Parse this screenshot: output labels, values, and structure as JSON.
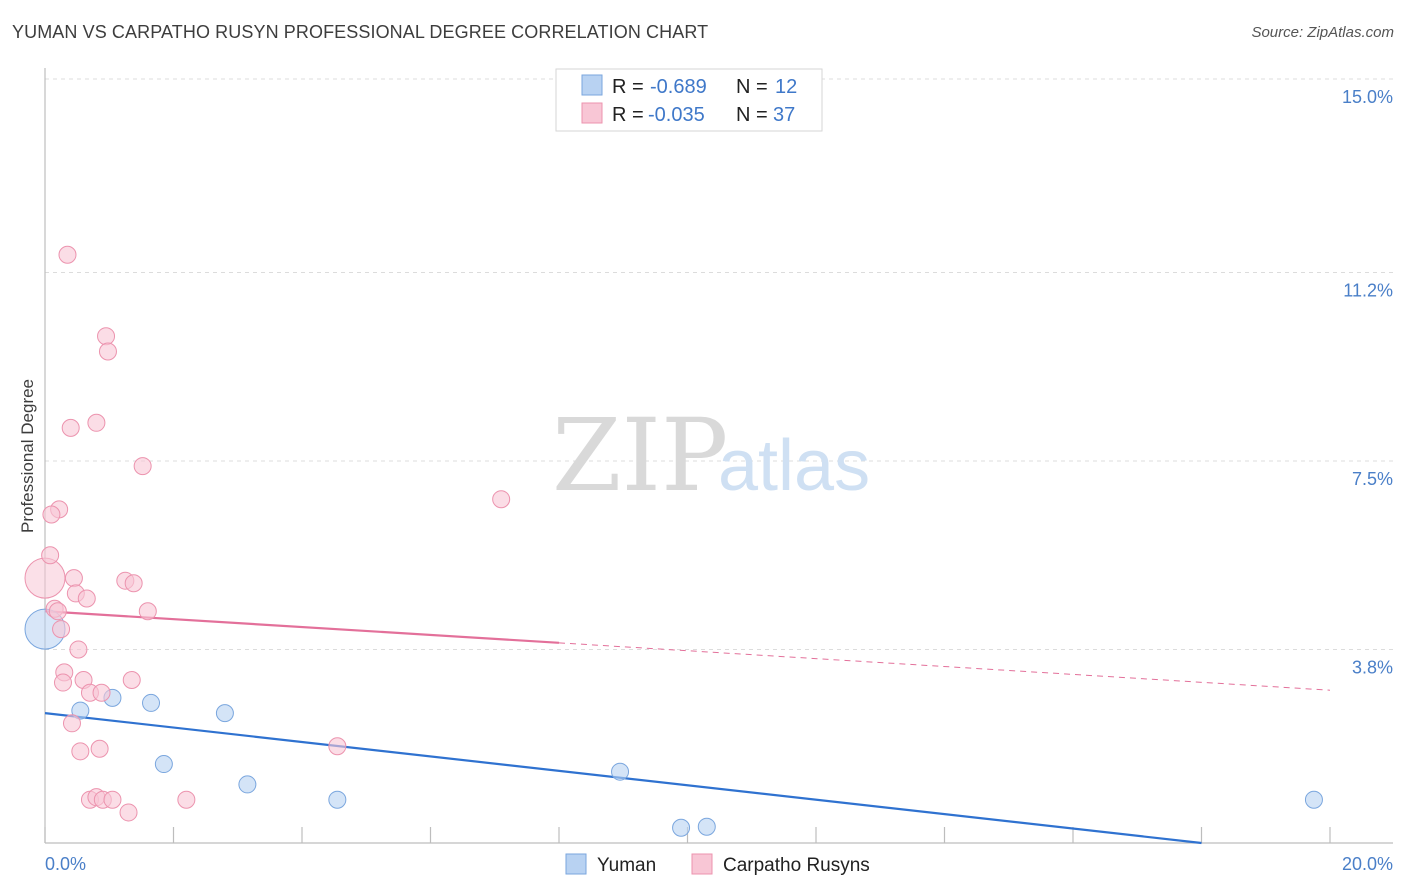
{
  "title": "YUMAN VS CARPATHO RUSYN PROFESSIONAL DEGREE CORRELATION CHART",
  "source": "Source: ZipAtlas.com",
  "watermark": {
    "zip": "ZIP",
    "atlas": "atlas"
  },
  "colors": {
    "yuman_fill": "#b8d2f2",
    "yuman_stroke": "#7aa6de",
    "yuman_line": "#2f72d0",
    "rusyn_fill": "#f8c6d5",
    "rusyn_stroke": "#ec93ae",
    "rusyn_line": "#e3709a"
  },
  "legend": {
    "r_label": "R =",
    "n_label": "N =",
    "rows": [
      {
        "series": "yuman",
        "r": "-0.689",
        "n": "12"
      },
      {
        "series": "rusyn",
        "r": "-0.035",
        "n": "37"
      }
    ]
  },
  "bottom_legend": [
    {
      "series": "yuman",
      "label": "Yuman"
    },
    {
      "series": "rusyn",
      "label": "Carpatho Rusyns"
    }
  ],
  "chart_data": {
    "type": "scatter",
    "title": "YUMAN VS CARPATHO RUSYN PROFESSIONAL DEGREE CORRELATION CHART",
    "xlabel": "",
    "ylabel": "Professional Degree",
    "xlim": [
      0,
      20
    ],
    "ylim": [
      0,
      15
    ],
    "x_tick_labels": [
      "0.0%",
      "20.0%"
    ],
    "y_tick_labels": [
      {
        "value": 3.8,
        "label": "3.8%"
      },
      {
        "value": 7.5,
        "label": "7.5%"
      },
      {
        "value": 11.2,
        "label": "11.2%"
      },
      {
        "value": 15.0,
        "label": "15.0%"
      }
    ],
    "series": [
      {
        "name": "Yuman",
        "key": "yuman",
        "r": -0.689,
        "n": 12,
        "points": [
          {
            "x": 0.0,
            "y": 4.2,
            "big": true
          },
          {
            "x": 0.55,
            "y": 2.6
          },
          {
            "x": 1.05,
            "y": 2.85
          },
          {
            "x": 1.65,
            "y": 2.75
          },
          {
            "x": 2.8,
            "y": 2.55
          },
          {
            "x": 1.85,
            "y": 1.55
          },
          {
            "x": 3.15,
            "y": 1.15
          },
          {
            "x": 4.55,
            "y": 0.85
          },
          {
            "x": 8.95,
            "y": 1.4
          },
          {
            "x": 9.9,
            "y": 0.3
          },
          {
            "x": 10.3,
            "y": 0.32
          },
          {
            "x": 19.75,
            "y": 0.85
          }
        ],
        "trend": {
          "x0": 0.0,
          "y0": 2.55,
          "x1": 18.0,
          "y1": 0.0,
          "dashed_to": 18.0
        }
      },
      {
        "name": "Carpatho Rusyns",
        "key": "rusyn",
        "r": -0.035,
        "n": 37,
        "points": [
          {
            "x": 0.0,
            "y": 5.2,
            "big": true
          },
          {
            "x": 0.35,
            "y": 11.55
          },
          {
            "x": 0.95,
            "y": 9.95
          },
          {
            "x": 0.98,
            "y": 9.65
          },
          {
            "x": 0.4,
            "y": 8.15
          },
          {
            "x": 0.8,
            "y": 8.25
          },
          {
            "x": 1.52,
            "y": 7.4
          },
          {
            "x": 0.22,
            "y": 6.55
          },
          {
            "x": 0.1,
            "y": 6.45
          },
          {
            "x": 0.08,
            "y": 5.65
          },
          {
            "x": 0.45,
            "y": 5.2
          },
          {
            "x": 1.25,
            "y": 5.15
          },
          {
            "x": 1.38,
            "y": 5.1
          },
          {
            "x": 0.48,
            "y": 4.9
          },
          {
            "x": 0.65,
            "y": 4.8
          },
          {
            "x": 0.15,
            "y": 4.6
          },
          {
            "x": 0.2,
            "y": 4.55
          },
          {
            "x": 1.6,
            "y": 4.55
          },
          {
            "x": 0.25,
            "y": 4.2
          },
          {
            "x": 0.52,
            "y": 3.8
          },
          {
            "x": 0.3,
            "y": 3.35
          },
          {
            "x": 0.28,
            "y": 3.15
          },
          {
            "x": 0.6,
            "y": 3.2
          },
          {
            "x": 1.35,
            "y": 3.2
          },
          {
            "x": 0.7,
            "y": 2.95
          },
          {
            "x": 0.88,
            "y": 2.95
          },
          {
            "x": 0.42,
            "y": 2.35
          },
          {
            "x": 0.55,
            "y": 1.8
          },
          {
            "x": 0.85,
            "y": 1.85
          },
          {
            "x": 4.55,
            "y": 1.9
          },
          {
            "x": 7.1,
            "y": 6.75
          },
          {
            "x": 0.7,
            "y": 0.85
          },
          {
            "x": 0.8,
            "y": 0.9
          },
          {
            "x": 0.9,
            "y": 0.85
          },
          {
            "x": 1.05,
            "y": 0.85
          },
          {
            "x": 2.2,
            "y": 0.85
          },
          {
            "x": 1.3,
            "y": 0.6
          }
        ],
        "trend": {
          "x0": 0.0,
          "y0": 4.55,
          "x1": 20.0,
          "y1": 3.0,
          "dashed_from": 8.0
        }
      }
    ]
  }
}
